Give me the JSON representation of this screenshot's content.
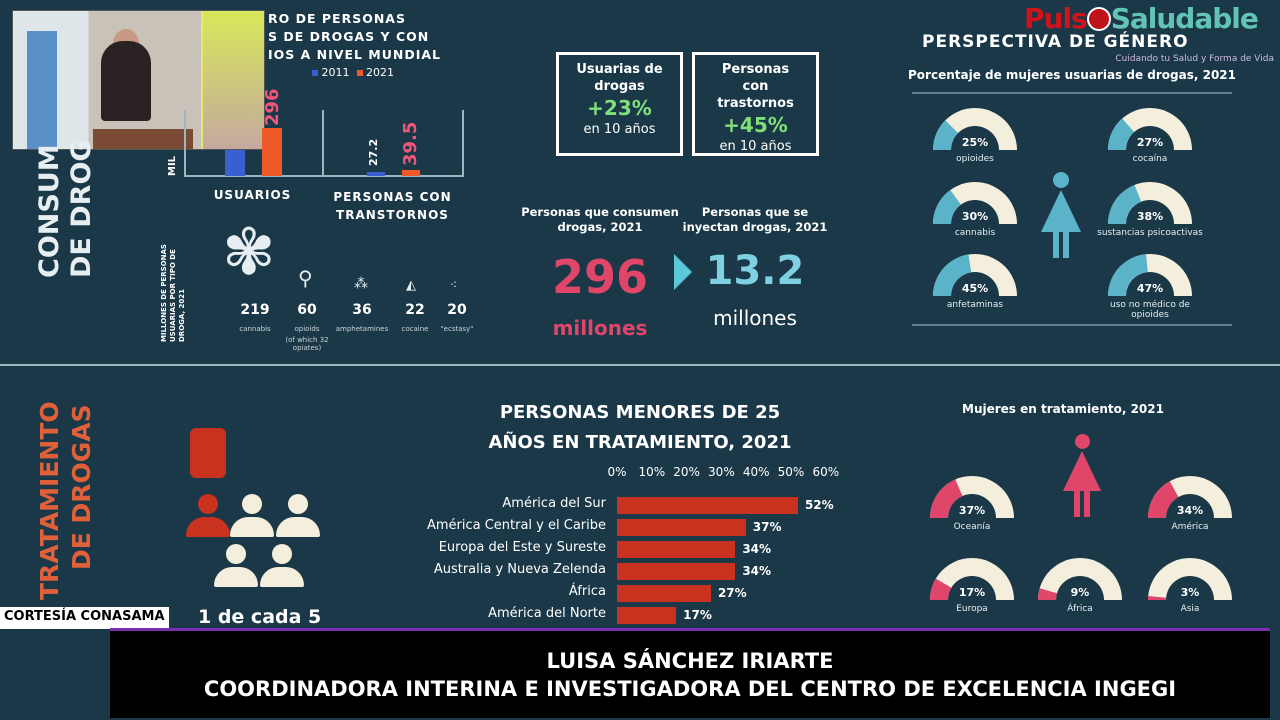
{
  "broadcast": {
    "credit": "CORTESÍA CONASAMA",
    "name": "LUISA SÁNCHEZ IRIARTE",
    "role": "COORDINADORA INTERINA E INVESTIGADORA DEL CENTRO DE EXCELENCIA INGEGI",
    "logo": "PulsoSaludable",
    "logo_left": "Puls",
    "logo_right": "Saludable",
    "logo_tagline": "Cuidando tu Salud y Forma de Vida"
  },
  "consumo": {
    "section_label_1": "CONSUM",
    "section_label_2": "DE DROG",
    "chart": {
      "title_lines": [
        "RO  DE PERSONAS",
        "S DE DROGAS Y CON",
        "IOS A NIVEL MUNDIAL"
      ],
      "ylabel": "MIL",
      "legend": [
        "2011",
        "2021"
      ],
      "colors": {
        "2011": "#3a5fd0",
        "2021": "#f05a28"
      },
      "groups": [
        {
          "label": "USUARIOS",
          "values": [
            null,
            296
          ],
          "labels": [
            "",
            "296"
          ]
        },
        {
          "label": "PERSONAS CON TRANSTORNOS",
          "values": [
            27.2,
            39.5
          ],
          "labels": [
            "27.2",
            "39.5"
          ]
        }
      ]
    },
    "by_drug": {
      "side_label": "MILLONES DE PERSONAS USUARIAS POR TIPO DE DROGA, 2021",
      "items": [
        {
          "value": "219",
          "label": "cannabis",
          "icon": "cannabis-leaf-icon"
        },
        {
          "value": "60",
          "label": "opioids",
          "note": "(of which 32 opiates)",
          "icon": "poppy-icon"
        },
        {
          "value": "36",
          "label": "amphetamines",
          "icon": "pills-icon"
        },
        {
          "value": "22",
          "label": "cocaine",
          "icon": "cocaine-icon"
        },
        {
          "value": "20",
          "label": "\"ecstasy\"",
          "icon": "ecstasy-icon"
        }
      ]
    }
  },
  "boxes": [
    {
      "title": "Usuarias de drogas",
      "pct": "+23%",
      "sub": "en 10 años"
    },
    {
      "title": "Personas con trastornos",
      "pct": "+45%",
      "sub": "en 10 años"
    }
  ],
  "stats": {
    "left_label": "Personas que consumen drogas, 2021",
    "left_value": "296",
    "left_unit": "millones",
    "right_label": "Personas que se inyectan drogas, 2021",
    "right_value": "13.2",
    "right_unit": "millones"
  },
  "genero": {
    "title": "PERSPECTIVA DE GÉNERO",
    "subtitle": "Porcentaje de mujeres usuarias de drogas, 2021",
    "fill_color": "#5bb3c9",
    "items": [
      {
        "pct": 25,
        "text": "25%",
        "label": "opioides"
      },
      {
        "pct": 27,
        "text": "27%",
        "label": "cocaína"
      },
      {
        "pct": 30,
        "text": "30%",
        "label": "cannabis"
      },
      {
        "pct": 38,
        "text": "38%",
        "label": "sustancias psicoactivas"
      },
      {
        "pct": 45,
        "text": "45%",
        "label": "anfetaminas"
      },
      {
        "pct": 47,
        "text": "47%",
        "label": "uso no médico de opioides"
      }
    ]
  },
  "tratamiento": {
    "section_label_1": "TRATAMIENTO",
    "section_label_2": "DE DROGAS",
    "ratio": "1 de cada 5"
  },
  "chart_data": {
    "type": "bar",
    "orientation": "horizontal",
    "title": "PERSONAS MENORES DE 25 AÑOS EN TRATAMIENTO, 2021",
    "ticks": [
      "0%",
      "10%",
      "20%",
      "30%",
      "40%",
      "50%",
      "60%"
    ],
    "xlim": [
      0,
      60
    ],
    "color": "#c8321e",
    "categories": [
      "América del Sur",
      "América Central y el Caribe",
      "Europa del Este y Sureste",
      "Australia y Nueva Zelenda",
      "África",
      "América del Norte"
    ],
    "values": [
      52,
      37,
      34,
      34,
      27,
      17
    ],
    "labels": [
      "52%",
      "37%",
      "34%",
      "34%",
      "27%",
      "17%"
    ]
  },
  "mujeres_tratamiento": {
    "title": "Mujeres en tratamiento, 2021",
    "fill_color": "#e0456a",
    "items": [
      {
        "pct": 37,
        "text": "37%",
        "label": "Oceanía"
      },
      {
        "pct": 34,
        "text": "34%",
        "label": "América"
      },
      {
        "pct": 17,
        "text": "17%",
        "label": "Europa"
      },
      {
        "pct": 9,
        "text": "9%",
        "label": "África"
      },
      {
        "pct": 3,
        "text": "3%",
        "label": "Asia"
      }
    ]
  }
}
